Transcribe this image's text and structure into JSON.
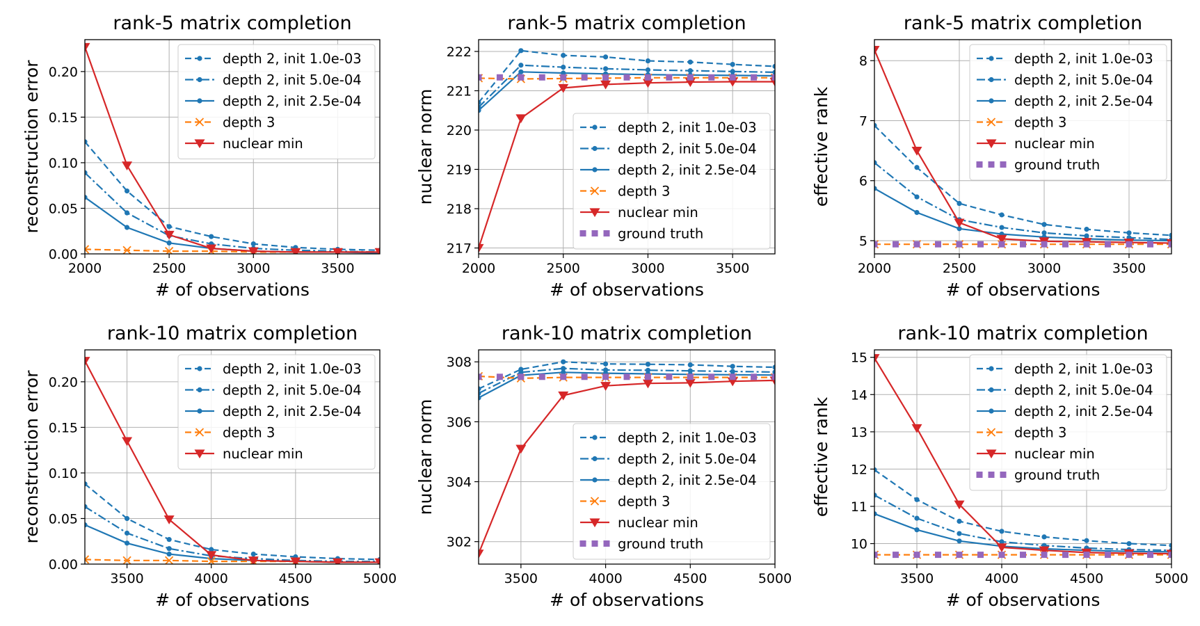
{
  "chart_data": [
    {
      "type": "line",
      "title": "rank-5 matrix completion",
      "xlabel": "# of observations",
      "ylabel": "reconstruction error",
      "xlim": [
        2000,
        3750
      ],
      "ylim": [
        0,
        0.235
      ],
      "xticks": [
        2000,
        2500,
        3000,
        3500
      ],
      "xtick_labels": [
        "2000",
        "2500",
        "3000",
        "3500"
      ],
      "yticks": [
        0,
        0.05,
        0.1,
        0.15,
        0.2
      ],
      "ytick_labels": [
        "0.00",
        "0.05",
        "0.10",
        "0.15",
        "0.20"
      ],
      "legend_position": "top-right",
      "x": [
        2000,
        2250,
        2500,
        2750,
        3000,
        3250,
        3500,
        3750
      ],
      "series": [
        {
          "name": "depth 2, init 1.0e-03",
          "style": "d1",
          "values": [
            0.123,
            0.069,
            0.03,
            0.019,
            0.011,
            0.007,
            0.005,
            0.004
          ]
        },
        {
          "name": "depth 2, init 5.0e-04",
          "style": "d2",
          "values": [
            0.089,
            0.045,
            0.02,
            0.011,
            0.006,
            0.004,
            0.003,
            0.002
          ]
        },
        {
          "name": "depth 2, init 2.5e-04",
          "style": "d3",
          "values": [
            0.062,
            0.029,
            0.012,
            0.006,
            0.003,
            0.002,
            0.002,
            0.001
          ]
        },
        {
          "name": "depth 3",
          "style": "d4",
          "values": [
            0.005,
            0.004,
            0.003,
            0.003,
            0.002,
            0.002,
            0.002,
            0.002
          ]
        },
        {
          "name": "nuclear min",
          "style": "nm",
          "values": [
            0.227,
            0.097,
            0.021,
            0.006,
            0.003,
            0.002,
            0.002,
            0.002
          ]
        }
      ]
    },
    {
      "type": "line",
      "title": "rank-5 matrix completion",
      "xlabel": "# of observations",
      "ylabel": "nuclear norm",
      "xlim": [
        2000,
        3750
      ],
      "ylim": [
        216.85,
        222.3
      ],
      "xticks": [
        2000,
        2500,
        3000,
        3500
      ],
      "xtick_labels": [
        "2000",
        "2500",
        "3000",
        "3500"
      ],
      "yticks": [
        217,
        218,
        219,
        220,
        221,
        222
      ],
      "ytick_labels": [
        "217",
        "218",
        "219",
        "220",
        "221",
        "222"
      ],
      "legend_position": "lower-right",
      "x": [
        2000,
        2250,
        2500,
        2750,
        3000,
        3250,
        3500,
        3750
      ],
      "series": [
        {
          "name": "depth 2, init 1.0e-03",
          "style": "d1",
          "values": [
            220.7,
            222.02,
            221.9,
            221.86,
            221.76,
            221.73,
            221.67,
            221.62
          ]
        },
        {
          "name": "depth 2, init 5.0e-04",
          "style": "d2",
          "values": [
            220.58,
            221.65,
            221.6,
            221.56,
            221.53,
            221.51,
            221.49,
            221.47
          ]
        },
        {
          "name": "depth 2, init 2.5e-04",
          "style": "d3",
          "values": [
            220.5,
            221.48,
            221.45,
            221.43,
            221.41,
            221.4,
            221.39,
            221.38
          ]
        },
        {
          "name": "depth 3",
          "style": "d4",
          "values": [
            221.32,
            221.3,
            221.31,
            221.32,
            221.33,
            221.33,
            221.33,
            221.33
          ]
        },
        {
          "name": "nuclear min",
          "style": "nm",
          "values": [
            217.0,
            220.3,
            221.07,
            221.16,
            221.2,
            221.22,
            221.23,
            221.23
          ]
        },
        {
          "name": "ground truth",
          "style": "gt",
          "values": [
            221.34,
            221.34,
            221.34,
            221.34,
            221.34,
            221.34,
            221.34,
            221.34
          ]
        }
      ]
    },
    {
      "type": "line",
      "title": "rank-5 matrix completion",
      "xlabel": "# of observations",
      "ylabel": "effective rank",
      "xlim": [
        2000,
        3750
      ],
      "ylim": [
        4.78,
        8.35
      ],
      "xticks": [
        2000,
        2500,
        3000,
        3500
      ],
      "xtick_labels": [
        "2000",
        "2500",
        "3000",
        "3500"
      ],
      "yticks": [
        5,
        6,
        7,
        8
      ],
      "ytick_labels": [
        "5",
        "6",
        "7",
        "8"
      ],
      "legend_position": "top-right",
      "x": [
        2000,
        2250,
        2500,
        2750,
        3000,
        3250,
        3500,
        3750
      ],
      "series": [
        {
          "name": "depth 2, init 1.0e-03",
          "style": "d1",
          "values": [
            6.92,
            6.22,
            5.62,
            5.43,
            5.27,
            5.19,
            5.13,
            5.09
          ]
        },
        {
          "name": "depth 2, init 5.0e-04",
          "style": "d2",
          "values": [
            6.3,
            5.73,
            5.35,
            5.22,
            5.13,
            5.08,
            5.05,
            5.02
          ]
        },
        {
          "name": "depth 2, init 2.5e-04",
          "style": "d3",
          "values": [
            5.87,
            5.47,
            5.2,
            5.11,
            5.06,
            5.03,
            5.01,
            5.0
          ]
        },
        {
          "name": "depth 3",
          "style": "d4",
          "values": [
            4.94,
            4.94,
            4.94,
            4.94,
            4.94,
            4.94,
            4.94,
            4.94
          ]
        },
        {
          "name": "nuclear min",
          "style": "nm",
          "values": [
            8.18,
            6.5,
            5.3,
            5.03,
            4.99,
            4.98,
            4.97,
            4.96
          ]
        },
        {
          "name": "ground truth",
          "style": "gt",
          "values": [
            4.94,
            4.94,
            4.94,
            4.94,
            4.94,
            4.94,
            4.94,
            4.94
          ]
        }
      ]
    },
    {
      "type": "line",
      "title": "rank-10 matrix completion",
      "xlabel": "# of observations",
      "ylabel": "reconstruction error",
      "xlim": [
        3250,
        5000
      ],
      "ylim": [
        0,
        0.235
      ],
      "xticks": [
        3500,
        4000,
        4500,
        5000
      ],
      "xtick_labels": [
        "3500",
        "4000",
        "4500",
        "5000"
      ],
      "yticks": [
        0,
        0.05,
        0.1,
        0.15,
        0.2
      ],
      "ytick_labels": [
        "0.00",
        "0.05",
        "0.10",
        "0.15",
        "0.20"
      ],
      "legend_position": "top-right",
      "x": [
        3250,
        3500,
        3750,
        4000,
        4250,
        4500,
        4750,
        5000
      ],
      "series": [
        {
          "name": "depth 2, init 1.0e-03",
          "style": "d1",
          "values": [
            0.088,
            0.05,
            0.027,
            0.016,
            0.011,
            0.008,
            0.006,
            0.005
          ]
        },
        {
          "name": "depth 2, init 5.0e-04",
          "style": "d2",
          "values": [
            0.063,
            0.034,
            0.017,
            0.009,
            0.006,
            0.004,
            0.003,
            0.003
          ]
        },
        {
          "name": "depth 2, init 2.5e-04",
          "style": "d3",
          "values": [
            0.043,
            0.023,
            0.011,
            0.006,
            0.004,
            0.003,
            0.002,
            0.002
          ]
        },
        {
          "name": "depth 3",
          "style": "d4",
          "values": [
            0.005,
            0.004,
            0.004,
            0.003,
            0.003,
            0.003,
            0.002,
            0.002
          ]
        },
        {
          "name": "nuclear min",
          "style": "nm",
          "values": [
            0.223,
            0.135,
            0.049,
            0.01,
            0.004,
            0.003,
            0.002,
            0.002
          ]
        }
      ]
    },
    {
      "type": "line",
      "title": "rank-10 matrix completion",
      "xlabel": "# of observations",
      "ylabel": "nuclear norm",
      "xlim": [
        3250,
        5000
      ],
      "ylim": [
        301.25,
        308.4
      ],
      "xticks": [
        3500,
        4000,
        4500,
        5000
      ],
      "xtick_labels": [
        "3500",
        "4000",
        "4500",
        "5000"
      ],
      "yticks": [
        302,
        304,
        306,
        308
      ],
      "ytick_labels": [
        "302",
        "304",
        "306",
        "308"
      ],
      "legend_position": "lower-right",
      "x": [
        3250,
        3500,
        3750,
        4000,
        4250,
        4500,
        4750,
        5000
      ],
      "series": [
        {
          "name": "depth 2, init 1.0e-03",
          "style": "d1",
          "values": [
            307.1,
            307.75,
            308.0,
            307.93,
            307.92,
            307.9,
            307.85,
            307.82
          ]
        },
        {
          "name": "depth 2, init 5.0e-04",
          "style": "d2",
          "values": [
            306.95,
            307.65,
            307.78,
            307.73,
            307.72,
            307.7,
            307.68,
            307.66
          ]
        },
        {
          "name": "depth 2, init 2.5e-04",
          "style": "d3",
          "values": [
            306.8,
            307.55,
            307.65,
            307.62,
            307.6,
            307.58,
            307.57,
            307.56
          ]
        },
        {
          "name": "depth 3",
          "style": "d4",
          "values": [
            307.52,
            307.45,
            307.48,
            307.48,
            307.48,
            307.48,
            307.48,
            307.48
          ]
        },
        {
          "name": "nuclear min",
          "style": "nm",
          "values": [
            301.6,
            305.1,
            306.88,
            307.2,
            307.28,
            307.3,
            307.35,
            307.38
          ]
        },
        {
          "name": "ground truth",
          "style": "gt",
          "values": [
            307.5,
            307.5,
            307.5,
            307.5,
            307.5,
            307.5,
            307.5,
            307.5
          ]
        }
      ]
    },
    {
      "type": "line",
      "title": "rank-10 matrix completion",
      "xlabel": "# of observations",
      "ylabel": "effective rank",
      "xlim": [
        3250,
        5000
      ],
      "ylim": [
        9.45,
        15.2
      ],
      "xticks": [
        3500,
        4000,
        4500,
        5000
      ],
      "xtick_labels": [
        "3500",
        "4000",
        "4500",
        "5000"
      ],
      "yticks": [
        10,
        11,
        12,
        13,
        14,
        15
      ],
      "ytick_labels": [
        "10",
        "11",
        "12",
        "13",
        "14",
        "15"
      ],
      "legend_position": "top-right",
      "x": [
        3250,
        3500,
        3750,
        4000,
        4250,
        4500,
        4750,
        5000
      ],
      "series": [
        {
          "name": "depth 2, init 1.0e-03",
          "style": "d1",
          "values": [
            11.98,
            11.18,
            10.6,
            10.33,
            10.18,
            10.08,
            10.0,
            9.95
          ]
        },
        {
          "name": "depth 2, init 5.0e-04",
          "style": "d2",
          "values": [
            11.3,
            10.68,
            10.27,
            10.05,
            9.95,
            9.88,
            9.84,
            9.82
          ]
        },
        {
          "name": "depth 2, init 2.5e-04",
          "style": "d3",
          "values": [
            10.8,
            10.37,
            10.07,
            9.93,
            9.86,
            9.82,
            9.79,
            9.78
          ]
        },
        {
          "name": "depth 3",
          "style": "d4",
          "values": [
            9.7,
            9.7,
            9.7,
            9.7,
            9.7,
            9.7,
            9.7,
            9.7
          ]
        },
        {
          "name": "nuclear min",
          "style": "nm",
          "values": [
            14.98,
            13.1,
            11.05,
            9.9,
            9.82,
            9.76,
            9.74,
            9.73
          ]
        },
        {
          "name": "ground truth",
          "style": "gt",
          "values": [
            9.7,
            9.7,
            9.7,
            9.7,
            9.7,
            9.7,
            9.7,
            9.7
          ]
        }
      ]
    }
  ],
  "styles": {
    "d1": {
      "color": "#1f77b4",
      "dash": "9,5",
      "marker": "dot"
    },
    "d2": {
      "color": "#1f77b4",
      "dash": "12,4,3,4",
      "marker": "dot"
    },
    "d3": {
      "color": "#1f77b4",
      "dash": "",
      "marker": "dot"
    },
    "d4": {
      "color": "#ff7f0e",
      "dash": "9,5",
      "marker": "x"
    },
    "nm": {
      "color": "#d62728",
      "dash": "",
      "marker": "tri"
    },
    "gt": {
      "color": "#9467bd",
      "dash": "",
      "marker": "square"
    }
  }
}
